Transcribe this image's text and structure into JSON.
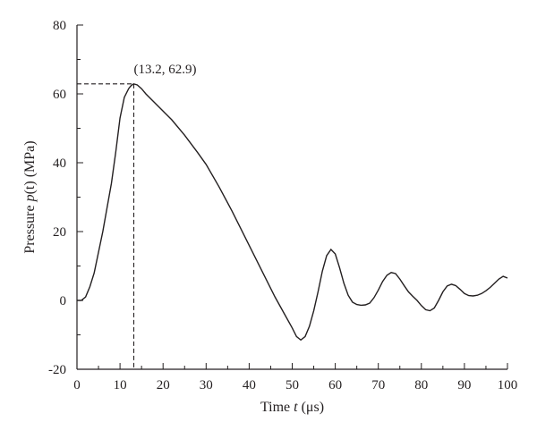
{
  "chart_data": {
    "type": "line",
    "xlabel": {
      "prefix": "Time ",
      "var": "t",
      "suffix": " (μs)"
    },
    "ylabel": {
      "prefix": "Pressure ",
      "var": "p",
      "suffix": "(t) (MPa)"
    },
    "xlim": [
      0,
      100
    ],
    "ylim": [
      -20,
      80
    ],
    "xticks": [
      0,
      10,
      20,
      30,
      40,
      50,
      60,
      70,
      80,
      90,
      100
    ],
    "yticks": [
      -20,
      0,
      20,
      40,
      60,
      80
    ],
    "grid": false,
    "annotation": {
      "text": "(13.2, 62.9)",
      "x": 13.2,
      "y": 62.9
    },
    "series": [
      {
        "x": [
          0,
          1,
          2,
          3,
          4,
          5,
          6,
          7,
          8,
          9,
          10,
          11,
          12,
          12.5,
          13,
          13.2,
          14,
          15,
          16,
          18,
          20,
          22,
          25,
          28,
          30,
          33,
          36,
          40,
          44,
          46,
          48,
          50,
          51,
          52,
          53,
          54,
          55,
          56,
          57,
          58,
          59,
          60,
          61,
          62,
          63,
          64,
          65,
          66,
          67,
          68,
          69,
          70,
          71,
          72,
          73,
          74,
          75,
          76,
          77,
          78,
          79,
          80,
          81,
          82,
          83,
          84,
          85,
          86,
          87,
          88,
          89,
          90,
          91,
          92,
          93,
          94,
          95,
          96,
          97,
          98,
          99,
          100
        ],
        "y": [
          0,
          0,
          1,
          4,
          8,
          14,
          20,
          27,
          34,
          43,
          53,
          59,
          61.5,
          62.3,
          62.8,
          62.9,
          62.6,
          61.5,
          60,
          57.5,
          55,
          52.5,
          48,
          43,
          39.5,
          33,
          26,
          16,
          6,
          1,
          -3.5,
          -8,
          -10.5,
          -11.5,
          -10.5,
          -7.5,
          -3,
          2.5,
          8.5,
          13,
          14.8,
          13.5,
          9.5,
          5,
          1.5,
          -0.5,
          -1.2,
          -1.4,
          -1.3,
          -0.8,
          0.8,
          3,
          5.5,
          7.3,
          8.1,
          7.8,
          6.2,
          4.3,
          2.5,
          1.2,
          0,
          -1.5,
          -2.7,
          -3,
          -2.2,
          0,
          2.5,
          4.2,
          4.7,
          4.3,
          3.2,
          2,
          1.4,
          1.3,
          1.5,
          2,
          2.8,
          3.8,
          5,
          6.2,
          7,
          6.5
        ]
      }
    ]
  }
}
